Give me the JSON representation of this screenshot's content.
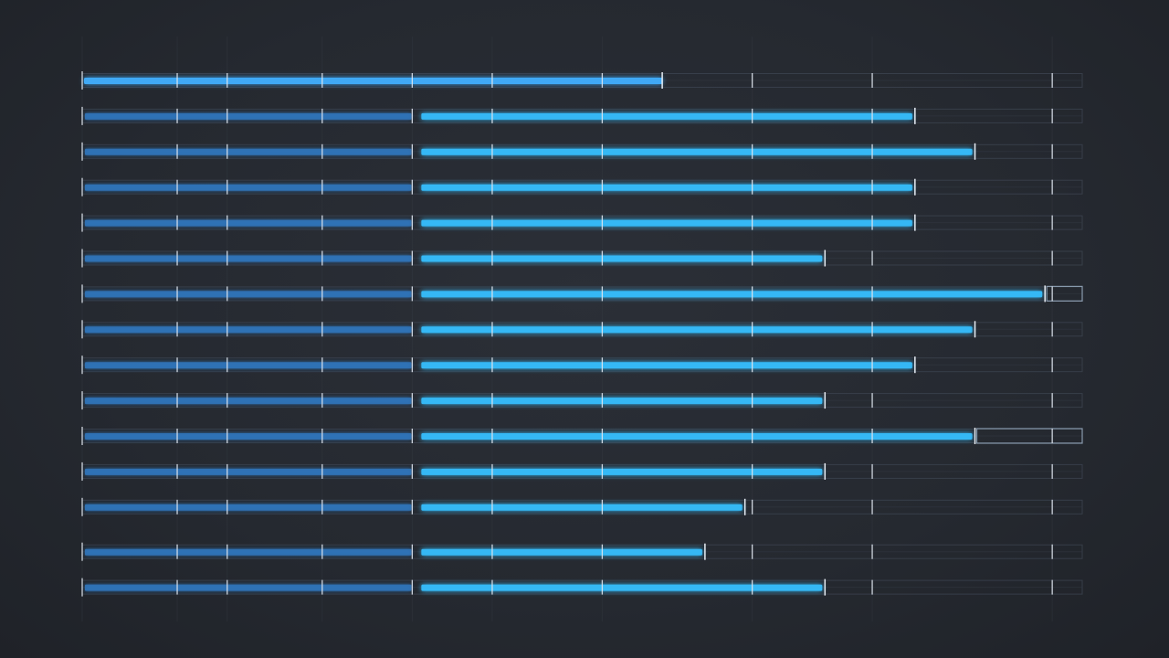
{
  "chart_data": {
    "type": "bar",
    "orientation": "horizontal",
    "stacked": true,
    "legend": "none",
    "xlim": [
      0,
      100
    ],
    "grid": true,
    "segments": [
      {
        "name": "",
        "color": "#2f73b8"
      },
      {
        "name": "",
        "color": "#35b8f5"
      }
    ],
    "overlay_color": "#3fa9f5",
    "rows": [
      {
        "base": 33,
        "value": 0,
        "overlay": 58,
        "track_end": 100
      },
      {
        "base": 33,
        "value": 50,
        "overlay": null,
        "track_end": 100
      },
      {
        "base": 33,
        "value": 56,
        "overlay": null,
        "track_end": 100
      },
      {
        "base": 33,
        "value": 50,
        "overlay": null,
        "track_end": 100
      },
      {
        "base": 33,
        "value": 50,
        "overlay": null,
        "track_end": 100
      },
      {
        "base": 33,
        "value": 41,
        "overlay": null,
        "track_end": 100
      },
      {
        "base": 33,
        "value": 63,
        "overlay": null,
        "track_end": 100,
        "outline_end": 100
      },
      {
        "base": 33,
        "value": 56,
        "overlay": null,
        "track_end": 100
      },
      {
        "base": 33,
        "value": 50,
        "overlay": null,
        "track_end": 100
      },
      {
        "base": 33,
        "value": 41,
        "overlay": null,
        "track_end": 100
      },
      {
        "base": 33,
        "value": 56,
        "overlay": null,
        "track_end": 100,
        "outline_end": 100
      },
      {
        "base": 33,
        "value": 41,
        "overlay": null,
        "track_end": 100
      },
      {
        "base": 33,
        "value": 33,
        "overlay": null,
        "track_end": 100
      },
      {
        "base": 33,
        "value": 29,
        "overlay": null,
        "track_end": 100
      },
      {
        "base": 33,
        "value": 41,
        "overlay": null,
        "track_end": 100
      }
    ],
    "tick_positions": [
      0,
      9.5,
      14.5,
      24,
      33,
      41,
      52,
      67,
      79,
      97
    ]
  }
}
